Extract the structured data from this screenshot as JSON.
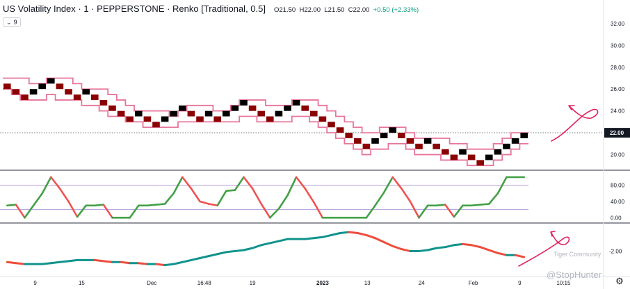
{
  "header": {
    "symbol": "US Volatility Index",
    "interval": "1",
    "exchange": "PEPPERSTONE",
    "chart_style": "Renko [Traditional, 0.5]",
    "ohlc": {
      "o_label": "O",
      "o": "21.50",
      "h_label": "H",
      "h": "22.00",
      "l_label": "L",
      "l": "21.50",
      "c_label": "C",
      "c": "22.00",
      "change": "+0.50 (+2.33%)"
    },
    "badge": {
      "icon": "chevron-down-icon",
      "value": "9"
    }
  },
  "time_axis": [
    "9",
    "15",
    "Dec",
    "16:48",
    "19",
    "2023",
    "13",
    "24",
    "Feb",
    "9",
    "10:15"
  ],
  "price_axis": [
    "32.00",
    "30.00",
    "28.00",
    "26.00",
    "24.00",
    "22.00",
    "20.00"
  ],
  "current_price_label": "22.00",
  "osc_axis": [
    "80.00",
    "40.00",
    "0.00"
  ],
  "lower_axis": [
    "-2.00"
  ],
  "watermarks": [
    "Tiger Community",
    "@StopHunter"
  ],
  "colors": {
    "up_brick": "#000000",
    "down_brick": "#8b0000",
    "band": "#e8749c",
    "osc_up": "#43a047",
    "osc_down": "#ef5350",
    "lower_up": "#10938c",
    "lower_down": "#ef4d3c",
    "annotation": "#e0245e",
    "ref_line": "#b39ddb"
  },
  "chart_data": [
    {
      "type": "line",
      "subtype": "renko",
      "title": "US Volatility Index · 1 · PEPPERSTONE · Renko [Traditional, 0.5]",
      "y_axis_ticks": [
        20,
        22,
        24,
        26,
        28,
        30,
        32
      ],
      "ylim": [
        18.7,
        33.2
      ],
      "bricks": [
        {
          "i": 0,
          "low": 26.0,
          "dir": "down"
        },
        {
          "i": 1,
          "low": 25.5,
          "dir": "down"
        },
        {
          "i": 2,
          "low": 25.0,
          "dir": "down"
        },
        {
          "i": 3,
          "low": 25.5,
          "dir": "up"
        },
        {
          "i": 4,
          "low": 26.0,
          "dir": "up"
        },
        {
          "i": 5,
          "low": 26.5,
          "dir": "up"
        },
        {
          "i": 6,
          "low": 26.0,
          "dir": "down"
        },
        {
          "i": 7,
          "low": 25.5,
          "dir": "down"
        },
        {
          "i": 8,
          "low": 25.0,
          "dir": "down"
        },
        {
          "i": 9,
          "low": 25.5,
          "dir": "up"
        },
        {
          "i": 10,
          "low": 25.0,
          "dir": "down"
        },
        {
          "i": 11,
          "low": 24.5,
          "dir": "down"
        },
        {
          "i": 12,
          "low": 24.0,
          "dir": "down"
        },
        {
          "i": 13,
          "low": 23.5,
          "dir": "down"
        },
        {
          "i": 14,
          "low": 23.0,
          "dir": "down"
        },
        {
          "i": 15,
          "low": 23.5,
          "dir": "up"
        },
        {
          "i": 16,
          "low": 23.0,
          "dir": "down"
        },
        {
          "i": 17,
          "low": 22.5,
          "dir": "down"
        },
        {
          "i": 18,
          "low": 23.0,
          "dir": "up"
        },
        {
          "i": 19,
          "low": 23.5,
          "dir": "up"
        },
        {
          "i": 20,
          "low": 24.0,
          "dir": "up"
        },
        {
          "i": 21,
          "low": 23.5,
          "dir": "down"
        },
        {
          "i": 22,
          "low": 23.0,
          "dir": "down"
        },
        {
          "i": 23,
          "low": 23.5,
          "dir": "up"
        },
        {
          "i": 24,
          "low": 23.0,
          "dir": "down"
        },
        {
          "i": 25,
          "low": 23.5,
          "dir": "up"
        },
        {
          "i": 26,
          "low": 24.0,
          "dir": "up"
        },
        {
          "i": 27,
          "low": 24.5,
          "dir": "up"
        },
        {
          "i": 28,
          "low": 24.0,
          "dir": "down"
        },
        {
          "i": 29,
          "low": 23.5,
          "dir": "down"
        },
        {
          "i": 30,
          "low": 23.0,
          "dir": "down"
        },
        {
          "i": 31,
          "low": 23.5,
          "dir": "up"
        },
        {
          "i": 32,
          "low": 24.0,
          "dir": "up"
        },
        {
          "i": 33,
          "low": 24.5,
          "dir": "up"
        },
        {
          "i": 34,
          "low": 24.0,
          "dir": "down"
        },
        {
          "i": 35,
          "low": 23.5,
          "dir": "down"
        },
        {
          "i": 36,
          "low": 23.0,
          "dir": "down"
        },
        {
          "i": 37,
          "low": 22.5,
          "dir": "down"
        },
        {
          "i": 38,
          "low": 22.0,
          "dir": "down"
        },
        {
          "i": 39,
          "low": 21.5,
          "dir": "down"
        },
        {
          "i": 40,
          "low": 21.0,
          "dir": "down"
        },
        {
          "i": 41,
          "low": 20.5,
          "dir": "down"
        },
        {
          "i": 42,
          "low": 21.0,
          "dir": "up"
        },
        {
          "i": 43,
          "low": 21.5,
          "dir": "up"
        },
        {
          "i": 44,
          "low": 22.0,
          "dir": "up"
        },
        {
          "i": 45,
          "low": 21.5,
          "dir": "down"
        },
        {
          "i": 46,
          "low": 21.0,
          "dir": "down"
        },
        {
          "i": 47,
          "low": 20.5,
          "dir": "down"
        },
        {
          "i": 48,
          "low": 21.0,
          "dir": "up"
        },
        {
          "i": 49,
          "low": 20.5,
          "dir": "down"
        },
        {
          "i": 50,
          "low": 20.0,
          "dir": "down"
        },
        {
          "i": 51,
          "low": 19.5,
          "dir": "down"
        },
        {
          "i": 52,
          "low": 20.0,
          "dir": "up"
        },
        {
          "i": 53,
          "low": 19.5,
          "dir": "down"
        },
        {
          "i": 54,
          "low": 19.0,
          "dir": "down"
        },
        {
          "i": 55,
          "low": 19.5,
          "dir": "up"
        },
        {
          "i": 56,
          "low": 20.0,
          "dir": "up"
        },
        {
          "i": 57,
          "low": 20.5,
          "dir": "up"
        },
        {
          "i": 58,
          "low": 21.0,
          "dir": "up"
        },
        {
          "i": 59,
          "low": 21.5,
          "dir": "up"
        }
      ],
      "band_upper": [
        27.0,
        27.0,
        27.0,
        26.5,
        26.5,
        27.0,
        27.0,
        27.0,
        26.5,
        26.0,
        26.0,
        26.0,
        25.5,
        25.0,
        24.5,
        24.0,
        24.0,
        24.0,
        24.0,
        23.5,
        24.0,
        24.5,
        24.5,
        24.5,
        24.0,
        24.0,
        24.5,
        25.0,
        25.0,
        25.0,
        24.5,
        24.5,
        24.5,
        25.0,
        25.0,
        25.0,
        24.5,
        24.0,
        23.5,
        23.0,
        22.5,
        22.0,
        22.0,
        22.5,
        22.5,
        22.5,
        22.0,
        21.5,
        21.5,
        21.5,
        21.5,
        21.0,
        21.0,
        20.5,
        20.5,
        20.5,
        21.0,
        21.5,
        22.0,
        22.0
      ],
      "band_lower": [
        26.0,
        25.5,
        25.0,
        25.0,
        25.0,
        25.5,
        25.0,
        25.0,
        25.0,
        24.5,
        24.5,
        24.0,
        23.5,
        23.5,
        23.0,
        23.0,
        22.5,
        22.5,
        22.5,
        22.5,
        23.0,
        23.0,
        23.0,
        23.0,
        23.0,
        23.0,
        23.0,
        23.5,
        23.5,
        23.0,
        23.0,
        23.0,
        23.0,
        23.5,
        23.5,
        23.0,
        22.5,
        22.0,
        21.5,
        21.0,
        20.5,
        20.0,
        20.5,
        20.5,
        21.0,
        21.0,
        20.5,
        20.0,
        20.0,
        20.0,
        19.5,
        19.5,
        19.5,
        19.0,
        19.0,
        19.0,
        19.5,
        20.0,
        20.5,
        21.0
      ]
    },
    {
      "type": "line",
      "title": "",
      "y_axis_ticks": [
        0,
        40,
        80
      ],
      "ylim": [
        -8,
        112
      ],
      "reference_lines": [
        20,
        80
      ],
      "values": [
        30,
        32,
        0,
        30,
        60,
        100,
        72,
        40,
        2,
        30,
        30,
        32,
        0,
        0,
        0,
        30,
        30,
        32,
        34,
        60,
        100,
        72,
        40,
        34,
        30,
        66,
        68,
        100,
        72,
        34,
        0,
        22,
        55,
        100,
        72,
        38,
        0,
        0,
        0,
        0,
        0,
        0,
        30,
        62,
        100,
        72,
        40,
        0,
        30,
        30,
        32,
        2,
        30,
        30,
        32,
        34,
        60,
        100,
        100,
        100
      ]
    },
    {
      "type": "line",
      "title": "",
      "y_axis_ticks": [
        -2
      ],
      "ylim": [
        -4.4,
        0.6
      ],
      "values": [
        -3.1,
        -3.2,
        -3.3,
        -3.3,
        -3.3,
        -3.2,
        -3.1,
        -3.0,
        -2.9,
        -2.9,
        -2.9,
        -3.0,
        -3.1,
        -3.1,
        -3.2,
        -3.2,
        -3.3,
        -3.3,
        -3.4,
        -3.3,
        -3.1,
        -2.9,
        -2.7,
        -2.5,
        -2.3,
        -2.1,
        -2.0,
        -1.9,
        -1.7,
        -1.4,
        -1.2,
        -1.0,
        -0.8,
        -0.8,
        -0.8,
        -0.7,
        -0.6,
        -0.4,
        -0.2,
        -0.1,
        -0.2,
        -0.4,
        -0.7,
        -1.1,
        -1.5,
        -1.8,
        -2.0,
        -2.0,
        -1.9,
        -1.7,
        -1.6,
        -1.4,
        -1.3,
        -1.4,
        -1.6,
        -1.9,
        -2.2,
        -2.4,
        -2.4,
        -2.6
      ]
    }
  ]
}
